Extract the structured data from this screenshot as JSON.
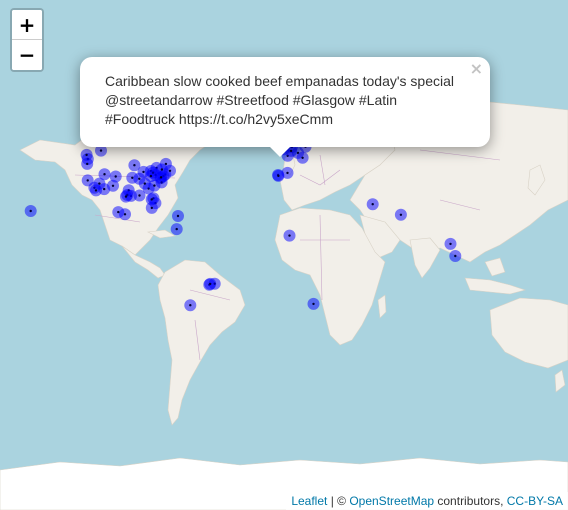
{
  "zoom": {
    "in_label": "+",
    "out_label": "−"
  },
  "popup": {
    "text": "Caribbean slow cooked beef empanadas today's special @streetandarrow #Streetfood #Glasgow #Latin #Foodtruck https://t.co/h2vy5xeCmm",
    "close_label": "×"
  },
  "attribution": {
    "leaflet": "Leaflet",
    "sep": " | © ",
    "osm": "OpenStreetMap",
    "contributors": " contributors, ",
    "license": "CC-BY-SA"
  },
  "colors": {
    "water": "#aad3df",
    "land": "#f2efe9",
    "ice": "#ffffff",
    "marker": "#0000ff",
    "border": "#c9a6c9"
  },
  "markers": [
    {
      "lat": 55.9,
      "lon": -4.3
    },
    {
      "lat": 51.5,
      "lon": -0.1
    },
    {
      "lat": 52.4,
      "lon": 4.9
    },
    {
      "lat": 48.9,
      "lon": 2.3
    },
    {
      "lat": 50.1,
      "lon": 8.7
    },
    {
      "lat": 48.1,
      "lon": 11.6
    },
    {
      "lat": 52.5,
      "lon": 13.4
    },
    {
      "lat": 50.9,
      "lon": 4.4
    },
    {
      "lat": 55.7,
      "lon": 37.6
    },
    {
      "lat": 40.4,
      "lon": -3.7
    },
    {
      "lat": 41.4,
      "lon": 2.2
    },
    {
      "lat": 40.0,
      "lon": -3.5
    },
    {
      "lat": 25.2,
      "lon": 55.3
    },
    {
      "lat": 19.1,
      "lon": 72.9
    },
    {
      "lat": 6.5,
      "lon": 3.4
    },
    {
      "lat": 1.3,
      "lon": 103.8
    },
    {
      "lat": -6.2,
      "lon": 106.8
    },
    {
      "lat": -33.9,
      "lon": 18.4
    },
    {
      "lat": -23.5,
      "lon": -46.6
    },
    {
      "lat": -22.9,
      "lon": -43.2
    },
    {
      "lat": -23.0,
      "lon": -46.0
    },
    {
      "lat": -34.6,
      "lon": -58.4
    },
    {
      "lat": 19.4,
      "lon": -99.1
    },
    {
      "lat": 20.7,
      "lon": -103.3
    },
    {
      "lat": 18.4,
      "lon": -66.1
    },
    {
      "lat": 10.5,
      "lon": -66.9
    },
    {
      "lat": 40.7,
      "lon": -74.0
    },
    {
      "lat": 42.4,
      "lon": -71.1
    },
    {
      "lat": 39.9,
      "lon": -75.2
    },
    {
      "lat": 38.9,
      "lon": -77.0
    },
    {
      "lat": 41.9,
      "lon": -87.6
    },
    {
      "lat": 43.7,
      "lon": -79.4
    },
    {
      "lat": 45.5,
      "lon": -73.6
    },
    {
      "lat": 33.7,
      "lon": -84.4
    },
    {
      "lat": 29.8,
      "lon": -95.4
    },
    {
      "lat": 32.8,
      "lon": -96.8
    },
    {
      "lat": 30.3,
      "lon": -97.7
    },
    {
      "lat": 25.8,
      "lon": -80.2
    },
    {
      "lat": 28.5,
      "lon": -81.4
    },
    {
      "lat": 35.2,
      "lon": -80.8
    },
    {
      "lat": 36.2,
      "lon": -86.8
    },
    {
      "lat": 39.7,
      "lon": -104.9
    },
    {
      "lat": 33.4,
      "lon": -112.1
    },
    {
      "lat": 34.1,
      "lon": -118.2
    },
    {
      "lat": 37.8,
      "lon": -122.4
    },
    {
      "lat": 47.6,
      "lon": -122.3
    },
    {
      "lat": 45.5,
      "lon": -122.7
    },
    {
      "lat": 32.7,
      "lon": -117.2
    },
    {
      "lat": 36.2,
      "lon": -115.1
    },
    {
      "lat": 49.3,
      "lon": -123.1
    },
    {
      "lat": 51.0,
      "lon": -114.1
    },
    {
      "lat": 44.9,
      "lon": -93.3
    },
    {
      "lat": 39.1,
      "lon": -94.6
    },
    {
      "lat": 38.6,
      "lon": -90.2
    },
    {
      "lat": 42.3,
      "lon": -83.0
    },
    {
      "lat": 40.4,
      "lon": -80.0
    },
    {
      "lat": 35.1,
      "lon": -106.6
    },
    {
      "lat": 40.8,
      "lon": -111.9
    },
    {
      "lat": 29.4,
      "lon": -98.5
    },
    {
      "lat": 30.0,
      "lon": -90.1
    },
    {
      "lat": 27.9,
      "lon": -82.5
    },
    {
      "lat": 36.8,
      "lon": -76.3
    },
    {
      "lat": 39.3,
      "lon": -76.6
    },
    {
      "lat": 41.5,
      "lon": -81.7
    },
    {
      "lat": 39.9,
      "lon": -83.0
    },
    {
      "lat": 43.0,
      "lon": -76.1
    },
    {
      "lat": 21.3,
      "lon": -157.9
    },
    {
      "lat": 23.1,
      "lon": -82.4
    }
  ]
}
